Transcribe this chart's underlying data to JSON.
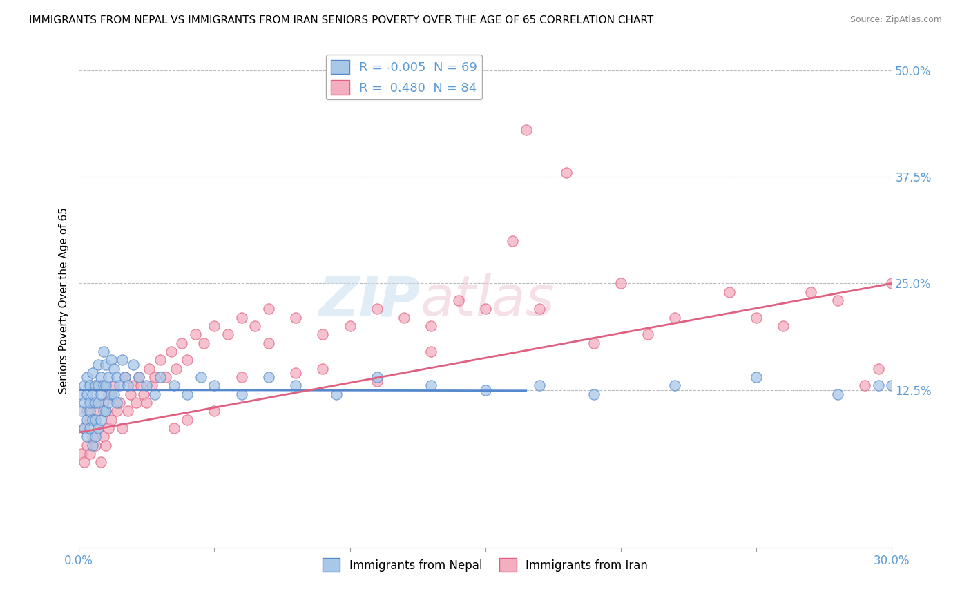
{
  "title": "IMMIGRANTS FROM NEPAL VS IMMIGRANTS FROM IRAN SENIORS POVERTY OVER THE AGE OF 65 CORRELATION CHART",
  "source": "Source: ZipAtlas.com",
  "ylabel": "Seniors Poverty Over the Age of 65",
  "xlim": [
    0.0,
    0.3
  ],
  "ylim": [
    -0.06,
    0.52
  ],
  "yticks": [
    0.125,
    0.25,
    0.375,
    0.5
  ],
  "ytick_labels": [
    "12.5%",
    "25.0%",
    "37.5%",
    "50.0%"
  ],
  "xticks": [
    0.0,
    0.05,
    0.1,
    0.15,
    0.2,
    0.25,
    0.3
  ],
  "xtick_labels": [
    "0.0%",
    "",
    "",
    "",
    "",
    "",
    "30.0%"
  ],
  "nepal_color": "#a8c8e8",
  "iran_color": "#f4aec0",
  "nepal_R": -0.005,
  "nepal_N": 69,
  "iran_R": 0.48,
  "iran_N": 84,
  "nepal_line_color": "#5588cc",
  "iran_line_color": "#e06080",
  "watermark_zip": "ZIP",
  "watermark_atlas": "atlas",
  "background_color": "#ffffff",
  "grid_color": "#bbbbbb",
  "title_fontsize": 11,
  "axis_label_color": "#5b9bd5",
  "nepal_scatter_x": [
    0.001,
    0.001,
    0.002,
    0.002,
    0.002,
    0.003,
    0.003,
    0.003,
    0.003,
    0.004,
    0.004,
    0.004,
    0.004,
    0.005,
    0.005,
    0.005,
    0.005,
    0.006,
    0.006,
    0.006,
    0.006,
    0.007,
    0.007,
    0.007,
    0.007,
    0.008,
    0.008,
    0.008,
    0.009,
    0.009,
    0.009,
    0.01,
    0.01,
    0.01,
    0.011,
    0.011,
    0.012,
    0.012,
    0.013,
    0.013,
    0.014,
    0.014,
    0.015,
    0.016,
    0.017,
    0.018,
    0.02,
    0.022,
    0.025,
    0.028,
    0.03,
    0.035,
    0.04,
    0.045,
    0.05,
    0.06,
    0.07,
    0.08,
    0.095,
    0.11,
    0.13,
    0.15,
    0.17,
    0.19,
    0.22,
    0.25,
    0.28,
    0.295,
    0.3
  ],
  "nepal_scatter_y": [
    0.12,
    0.1,
    0.13,
    0.08,
    0.11,
    0.09,
    0.14,
    0.12,
    0.07,
    0.13,
    0.1,
    0.08,
    0.11,
    0.145,
    0.12,
    0.09,
    0.06,
    0.13,
    0.11,
    0.09,
    0.07,
    0.155,
    0.13,
    0.11,
    0.08,
    0.14,
    0.12,
    0.09,
    0.17,
    0.13,
    0.1,
    0.155,
    0.13,
    0.1,
    0.14,
    0.11,
    0.16,
    0.12,
    0.15,
    0.12,
    0.14,
    0.11,
    0.13,
    0.16,
    0.14,
    0.13,
    0.155,
    0.14,
    0.13,
    0.12,
    0.14,
    0.13,
    0.12,
    0.14,
    0.13,
    0.12,
    0.14,
    0.13,
    0.12,
    0.14,
    0.13,
    0.125,
    0.13,
    0.12,
    0.13,
    0.14,
    0.12,
    0.13,
    0.13
  ],
  "iran_scatter_x": [
    0.001,
    0.002,
    0.002,
    0.003,
    0.003,
    0.004,
    0.004,
    0.005,
    0.005,
    0.006,
    0.006,
    0.007,
    0.007,
    0.008,
    0.008,
    0.009,
    0.009,
    0.01,
    0.01,
    0.011,
    0.011,
    0.012,
    0.013,
    0.014,
    0.015,
    0.016,
    0.017,
    0.018,
    0.019,
    0.02,
    0.021,
    0.022,
    0.023,
    0.024,
    0.025,
    0.026,
    0.027,
    0.028,
    0.03,
    0.032,
    0.034,
    0.036,
    0.038,
    0.04,
    0.043,
    0.046,
    0.05,
    0.055,
    0.06,
    0.065,
    0.07,
    0.08,
    0.09,
    0.1,
    0.11,
    0.12,
    0.13,
    0.14,
    0.15,
    0.165,
    0.18,
    0.2,
    0.22,
    0.24,
    0.26,
    0.28,
    0.295,
    0.13,
    0.16,
    0.09,
    0.05,
    0.07,
    0.11,
    0.17,
    0.04,
    0.06,
    0.08,
    0.035,
    0.19,
    0.21,
    0.25,
    0.27,
    0.3,
    0.29
  ],
  "iran_scatter_y": [
    0.05,
    0.08,
    0.04,
    0.1,
    0.06,
    0.09,
    0.05,
    0.11,
    0.07,
    0.13,
    0.06,
    0.1,
    0.08,
    0.04,
    0.13,
    0.07,
    0.11,
    0.06,
    0.1,
    0.12,
    0.08,
    0.09,
    0.13,
    0.1,
    0.11,
    0.08,
    0.14,
    0.1,
    0.12,
    0.13,
    0.11,
    0.14,
    0.13,
    0.12,
    0.11,
    0.15,
    0.13,
    0.14,
    0.16,
    0.14,
    0.17,
    0.15,
    0.18,
    0.16,
    0.19,
    0.18,
    0.2,
    0.19,
    0.21,
    0.2,
    0.22,
    0.21,
    0.19,
    0.2,
    0.22,
    0.21,
    0.2,
    0.23,
    0.22,
    0.43,
    0.38,
    0.25,
    0.21,
    0.24,
    0.2,
    0.23,
    0.15,
    0.17,
    0.3,
    0.15,
    0.1,
    0.18,
    0.135,
    0.22,
    0.09,
    0.14,
    0.145,
    0.08,
    0.18,
    0.19,
    0.21,
    0.24,
    0.25,
    0.13
  ],
  "nepal_line_x": [
    0.0,
    0.165
  ],
  "nepal_line_y": [
    0.125,
    0.124
  ],
  "iran_line_x": [
    0.0,
    0.3
  ],
  "iran_line_y": [
    0.075,
    0.25
  ]
}
